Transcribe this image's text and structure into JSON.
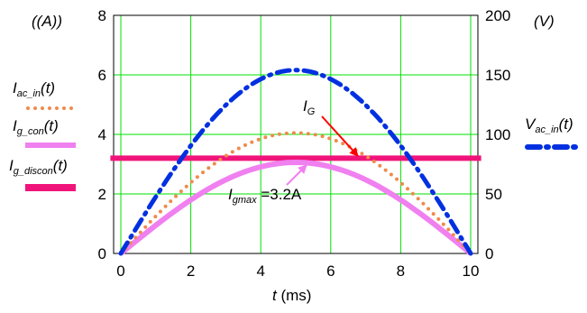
{
  "chart_data": {
    "type": "line",
    "title": "",
    "xlabel": {
      "var": "t",
      "unit": " (ms)"
    },
    "ylabel_left": "(A)",
    "ylabel_right": "(V)",
    "xlim": [
      0,
      10
    ],
    "ylim_left": [
      0,
      8
    ],
    "ylim_right": [
      0,
      200
    ],
    "grid": true,
    "x_ticks": [
      "0",
      "2",
      "4",
      "6",
      "8",
      "10"
    ],
    "y_left_ticks": [
      "0",
      "2",
      "4",
      "6",
      "8"
    ],
    "y_right_ticks": [
      "0",
      "50",
      "100",
      "150",
      "200"
    ],
    "colors": {
      "grid": "#00e000",
      "i_ac_in": "#f08a4b",
      "i_g_con": "#f080f0",
      "i_g_discon": "#f0147a",
      "v_ac_in": "#0030e0",
      "ig_arrow": "#ff0000"
    },
    "series": [
      {
        "name": {
          "main": "I",
          "sub": "ac_in",
          "arg": "(t)"
        },
        "axis": "left",
        "style": "dotted",
        "x": [
          0,
          1,
          2,
          3,
          4,
          5,
          6,
          7,
          8,
          9,
          10
        ],
        "y": [
          0,
          1.25,
          2.38,
          3.27,
          3.85,
          4.05,
          3.85,
          3.27,
          2.38,
          1.25,
          0
        ]
      },
      {
        "name": {
          "main": "I",
          "sub": "g_con",
          "arg": "(t)"
        },
        "axis": "left",
        "style": "solid-thick",
        "x": [
          0,
          1,
          2,
          3,
          4,
          5,
          6,
          7,
          8,
          9,
          10
        ],
        "y": [
          0,
          0.95,
          1.8,
          2.48,
          2.91,
          3.06,
          2.91,
          2.48,
          1.8,
          0.95,
          0
        ]
      },
      {
        "name": {
          "main": "I",
          "sub": "g_discon",
          "arg": "(t)"
        },
        "axis": "left",
        "style": "solid-thicker",
        "x": [
          -0.3,
          10.3
        ],
        "y": [
          3.2,
          3.2
        ]
      },
      {
        "name": {
          "main": "V",
          "sub": "ac_in",
          "arg": "(t)"
        },
        "axis": "right",
        "style": "dash-dot",
        "x": [
          0,
          1,
          2,
          3,
          4,
          5,
          6,
          7,
          8,
          9,
          10
        ],
        "y": [
          0,
          47.6,
          90.6,
          124.6,
          146.5,
          154,
          146.5,
          124.6,
          90.6,
          47.6,
          0
        ]
      }
    ],
    "annotations": [
      {
        "main": "I",
        "sub": "G",
        "text": ""
      },
      {
        "main": "I",
        "sub": "gmax",
        "text": " =3.2A"
      }
    ]
  }
}
